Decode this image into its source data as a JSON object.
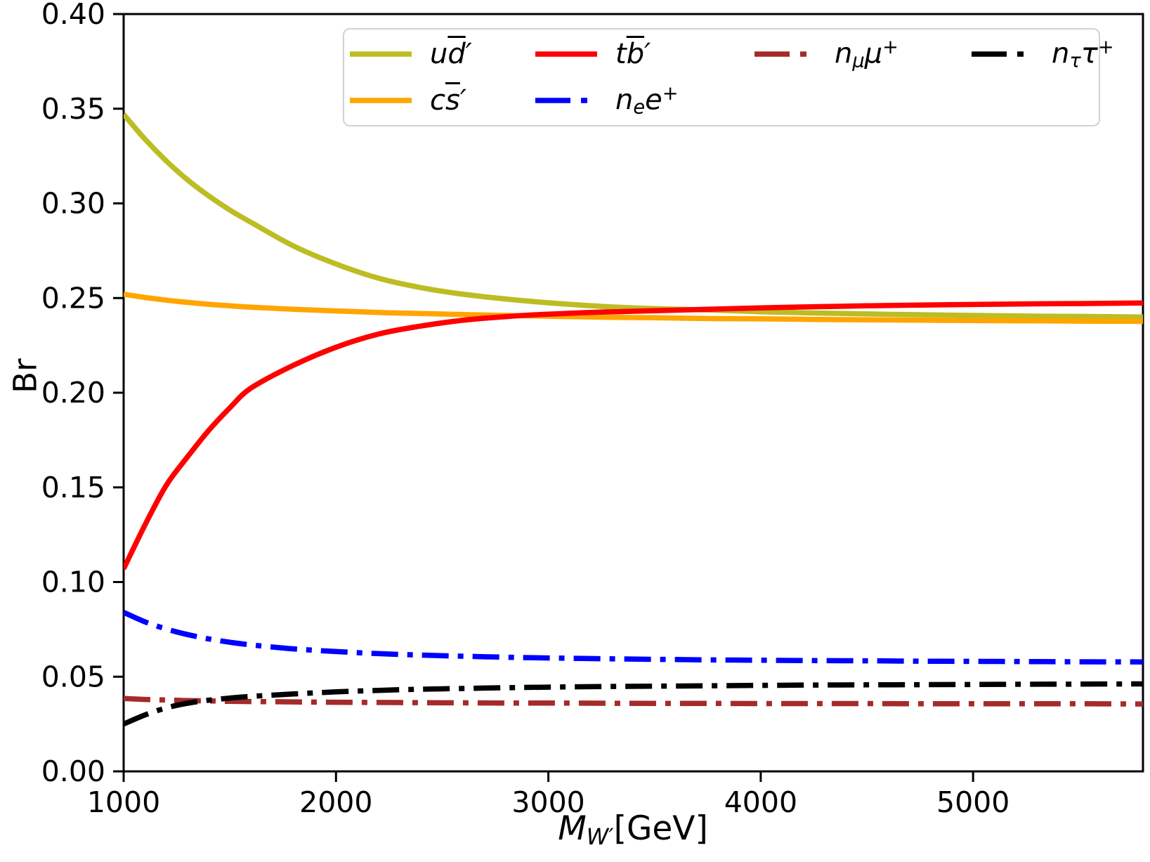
{
  "figure": {
    "background": "#ffffff"
  },
  "chart_data": {
    "type": "line",
    "title": "",
    "xlabel": "M_W′ [GeV]",
    "ylabel": "Br",
    "xlabel_tokens": [
      {
        "t": "M",
        "i": 1
      },
      {
        "t": "W′",
        "i": 1,
        "sub": 1
      },
      {
        "t": "[GeV]"
      }
    ],
    "xlim": [
      1000,
      5800
    ],
    "ylim": [
      0.0,
      0.4
    ],
    "grid": false,
    "xticks": {
      "values": [
        1000,
        2000,
        3000,
        4000,
        5000
      ],
      "labels": [
        "1000",
        "2000",
        "3000",
        "4000",
        "5000"
      ]
    },
    "yticks": {
      "values": [
        0.0,
        0.05,
        0.1,
        0.15,
        0.2,
        0.25,
        0.3,
        0.35,
        0.4
      ],
      "labels": [
        "0.00",
        "0.05",
        "0.10",
        "0.15",
        "0.20",
        "0.25",
        "0.30",
        "0.35",
        "0.40"
      ]
    },
    "legend": {
      "position": "upper center",
      "ncol": 4,
      "frame": true,
      "border_color": "#d2d2d2",
      "order": "column-major"
    },
    "x": [
      1000,
      1100,
      1200,
      1300,
      1400,
      1500,
      1600,
      1800,
      2000,
      2200,
      2400,
      2600,
      2800,
      3000,
      3250,
      3500,
      3750,
      4000,
      4250,
      4500,
      4750,
      5000,
      5250,
      5500,
      5800
    ],
    "series": [
      {
        "key": "ud",
        "name": "ud̄′",
        "color": "#bcbd22",
        "style": "solid",
        "legend_row": 0,
        "legend_col": 0,
        "label_tokens": [
          {
            "t": "u",
            "i": 1
          },
          {
            "t": "d",
            "i": 1,
            "ov": 1
          },
          {
            "t": "′",
            "i": 1
          }
        ],
        "values": [
          0.347,
          0.334,
          0.3225,
          0.3125,
          0.304,
          0.2965,
          0.29,
          0.2775,
          0.268,
          0.2605,
          0.2555,
          0.252,
          0.2495,
          0.2475,
          0.2456,
          0.2444,
          0.2437,
          0.2428,
          0.2421,
          0.2416,
          0.2412,
          0.2408,
          0.2405,
          0.2403,
          0.24
        ]
      },
      {
        "key": "cs",
        "name": "cs̄′",
        "color": "#ffa500",
        "style": "solid",
        "legend_row": 1,
        "legend_col": 0,
        "label_tokens": [
          {
            "t": "c",
            "i": 1
          },
          {
            "t": "s",
            "i": 1,
            "ov": 1
          },
          {
            "t": "′",
            "i": 1
          }
        ],
        "values": [
          0.252,
          0.2503,
          0.2489,
          0.2477,
          0.2467,
          0.2459,
          0.2452,
          0.2441,
          0.2432,
          0.2424,
          0.2418,
          0.2413,
          0.2408,
          0.2404,
          0.2399,
          0.2396,
          0.2392,
          0.239,
          0.2387,
          0.2385,
          0.2383,
          0.2381,
          0.238,
          0.2378,
          0.2377
        ]
      },
      {
        "key": "tb",
        "name": "tb̄′",
        "color": "#ff0000",
        "style": "solid",
        "legend_row": 0,
        "legend_col": 1,
        "label_tokens": [
          {
            "t": "t",
            "i": 1
          },
          {
            "t": "b",
            "i": 1,
            "ov": 1
          },
          {
            "t": "′",
            "i": 1
          }
        ],
        "values": [
          0.107,
          0.13,
          0.151,
          0.166,
          0.18,
          0.192,
          0.2025,
          0.2145,
          0.224,
          0.231,
          0.2352,
          0.2383,
          0.2402,
          0.2415,
          0.2426,
          0.2433,
          0.2441,
          0.2448,
          0.2454,
          0.2459,
          0.2463,
          0.2466,
          0.2469,
          0.2471,
          0.2474
        ]
      },
      {
        "key": "ne",
        "name": "nₑe⁺",
        "color": "#0000ff",
        "style": "dashdot",
        "legend_row": 1,
        "legend_col": 1,
        "label_tokens": [
          {
            "t": "n",
            "i": 1
          },
          {
            "t": "e",
            "i": 1,
            "sub": 1
          },
          {
            "t": "e",
            "i": 1
          },
          {
            "t": "+",
            "sup": 1
          }
        ],
        "values": [
          0.084,
          0.079,
          0.0752,
          0.0723,
          0.07,
          0.0682,
          0.0668,
          0.0647,
          0.0633,
          0.0622,
          0.0614,
          0.0608,
          0.0603,
          0.0599,
          0.0595,
          0.0592,
          0.0589,
          0.0587,
          0.0585,
          0.0584,
          0.0582,
          0.0581,
          0.058,
          0.0579,
          0.0578
        ]
      },
      {
        "key": "nmu",
        "name": "nμμ⁺",
        "color": "#a52a2a",
        "style": "dashdot",
        "legend_row": 0,
        "legend_col": 2,
        "label_tokens": [
          {
            "t": "n",
            "i": 1
          },
          {
            "t": "μ",
            "i": 1,
            "sub": 1
          },
          {
            "t": "μ",
            "i": 1
          },
          {
            "t": "+",
            "sup": 1
          }
        ],
        "values": [
          0.0385,
          0.038,
          0.0377,
          0.0374,
          0.0372,
          0.037,
          0.0369,
          0.0367,
          0.0365,
          0.0364,
          0.0363,
          0.0362,
          0.0361,
          0.0361,
          0.036,
          0.0359,
          0.0359,
          0.0358,
          0.0358,
          0.0358,
          0.0357,
          0.0357,
          0.0357,
          0.0357,
          0.0356
        ]
      },
      {
        "key": "ntau",
        "name": "nττ⁺",
        "color": "#000000",
        "style": "dashdot",
        "legend_row": 0,
        "legend_col": 3,
        "label_tokens": [
          {
            "t": "n",
            "i": 1
          },
          {
            "t": "τ",
            "i": 1,
            "sub": 1
          },
          {
            "t": "τ",
            "i": 1
          },
          {
            "t": "+",
            "sup": 1
          }
        ],
        "values": [
          0.025,
          0.0298,
          0.0335,
          0.036,
          0.0376,
          0.0387,
          0.0396,
          0.0409,
          0.042,
          0.0428,
          0.0434,
          0.0438,
          0.0442,
          0.0445,
          0.0448,
          0.045,
          0.0452,
          0.0454,
          0.0456,
          0.0457,
          0.0458,
          0.0459,
          0.046,
          0.0461,
          0.0462
        ]
      }
    ]
  }
}
